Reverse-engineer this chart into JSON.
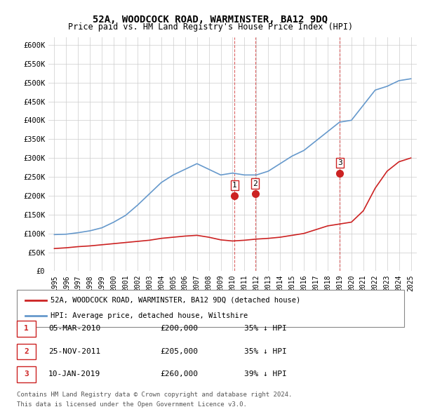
{
  "title": "52A, WOODCOCK ROAD, WARMINSTER, BA12 9DQ",
  "subtitle": "Price paid vs. HM Land Registry's House Price Index (HPI)",
  "ylabel_color": "#333333",
  "background_color": "#ffffff",
  "plot_bg_color": "#ffffff",
  "grid_color": "#cccccc",
  "hpi_color": "#6699cc",
  "price_color": "#cc2222",
  "legend_label_price": "52A, WOODCOCK ROAD, WARMINSTER, BA12 9DQ (detached house)",
  "legend_label_hpi": "HPI: Average price, detached house, Wiltshire",
  "transactions": [
    {
      "num": 1,
      "date": "05-MAR-2010",
      "price": 200000,
      "pct": "35%",
      "x": 2010.17
    },
    {
      "num": 2,
      "date": "25-NOV-2011",
      "price": 205000,
      "pct": "35%",
      "x": 2011.9
    },
    {
      "num": 3,
      "date": "10-JAN-2019",
      "price": 260000,
      "pct": "39%",
      "x": 2019.03
    }
  ],
  "footnote1": "Contains HM Land Registry data © Crown copyright and database right 2024.",
  "footnote2": "This data is licensed under the Open Government Licence v3.0.",
  "hpi_data": {
    "years": [
      1995,
      1996,
      1997,
      1998,
      1999,
      2000,
      2001,
      2002,
      2003,
      2004,
      2005,
      2006,
      2007,
      2008,
      2009,
      2010,
      2011,
      2012,
      2013,
      2014,
      2015,
      2016,
      2017,
      2018,
      2019,
      2020,
      2021,
      2022,
      2023,
      2024,
      2025
    ],
    "values": [
      97000,
      98000,
      102000,
      107000,
      115000,
      130000,
      148000,
      175000,
      205000,
      235000,
      255000,
      270000,
      285000,
      270000,
      255000,
      260000,
      255000,
      255000,
      265000,
      285000,
      305000,
      320000,
      345000,
      370000,
      395000,
      400000,
      440000,
      480000,
      490000,
      505000,
      510000
    ]
  },
  "price_index_data": {
    "years": [
      1995,
      1996,
      1997,
      1998,
      1999,
      2000,
      2001,
      2002,
      2003,
      2004,
      2005,
      2006,
      2007,
      2008,
      2009,
      2010,
      2011,
      2012,
      2013,
      2014,
      2015,
      2016,
      2017,
      2018,
      2019,
      2020,
      2021,
      2022,
      2023,
      2024,
      2025
    ],
    "values": [
      60000,
      62000,
      65000,
      67000,
      70000,
      73000,
      76000,
      79000,
      82000,
      87000,
      90000,
      93000,
      95000,
      90000,
      83000,
      80000,
      82000,
      85000,
      87000,
      90000,
      95000,
      100000,
      110000,
      120000,
      125000,
      130000,
      160000,
      220000,
      265000,
      290000,
      300000
    ]
  },
  "ylim": [
    0,
    620000
  ],
  "xlim": [
    1994.5,
    2025.5
  ],
  "yticks": [
    0,
    50000,
    100000,
    150000,
    200000,
    250000,
    300000,
    350000,
    400000,
    450000,
    500000,
    550000,
    600000
  ],
  "ytick_labels": [
    "£0",
    "£50K",
    "£100K",
    "£150K",
    "£200K",
    "£250K",
    "£300K",
    "£350K",
    "£400K",
    "£450K",
    "£500K",
    "£550K",
    "£600K"
  ],
  "xticks": [
    1995,
    1996,
    1997,
    1998,
    1999,
    2000,
    2001,
    2002,
    2003,
    2004,
    2005,
    2006,
    2007,
    2008,
    2009,
    2010,
    2011,
    2012,
    2013,
    2014,
    2015,
    2016,
    2017,
    2018,
    2019,
    2020,
    2021,
    2022,
    2023,
    2024,
    2025
  ]
}
